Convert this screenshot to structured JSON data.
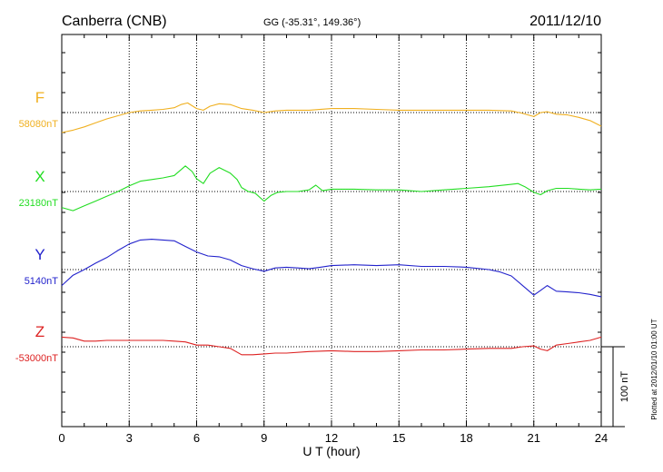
{
  "header": {
    "station": "Canberra (CNB)",
    "coords": "GG (-35.31°, 149.36°)",
    "date": "2011/12/10"
  },
  "footer": {
    "plotted": "Plotted at 2012/01/10 01:00 UT"
  },
  "scale_bar": {
    "label": "100 nT",
    "value": 100
  },
  "chart_data": {
    "type": "line",
    "xlabel": "U T (hour)",
    "ylabel": "",
    "xlim": [
      0,
      24
    ],
    "xticks": [
      0,
      3,
      6,
      9,
      12,
      15,
      18,
      21,
      24
    ],
    "grid": true,
    "series": [
      {
        "name": "F",
        "baseline_label": "58080nT",
        "baseline": 58080,
        "color": "#f0b020",
        "x": [
          0,
          0.5,
          1,
          1.5,
          2,
          2.5,
          3,
          3.5,
          4,
          4.5,
          5,
          5.3,
          5.6,
          6,
          6.3,
          6.6,
          7,
          7.5,
          8,
          8.5,
          9,
          9.5,
          10,
          11,
          12,
          13,
          14,
          15,
          16,
          17,
          18,
          19,
          20,
          20.5,
          21,
          21.3,
          21.6,
          22,
          22.5,
          23,
          23.5,
          24
        ],
        "y": [
          58055,
          58058,
          58062,
          58067,
          58072,
          58076,
          58080,
          58082,
          58083,
          58084,
          58086,
          58090,
          58092,
          58085,
          58083,
          58088,
          58091,
          58090,
          58085,
          58083,
          58080,
          58082,
          58083,
          58083,
          58085,
          58085,
          58084,
          58083,
          58083,
          58083,
          58083,
          58083,
          58082,
          58079,
          58075,
          58080,
          58081,
          58078,
          58077,
          58074,
          58070,
          58063
        ]
      },
      {
        "name": "X",
        "baseline_label": "23180nT",
        "baseline": 23180,
        "color": "#22dd22",
        "x": [
          0,
          0.5,
          1,
          1.5,
          2,
          2.5,
          3,
          3.5,
          4,
          4.5,
          5,
          5.5,
          5.8,
          6,
          6.3,
          6.6,
          7,
          7.5,
          7.8,
          8,
          8.3,
          8.6,
          9,
          9.3,
          9.6,
          10,
          10.5,
          11,
          11.3,
          11.6,
          12,
          13,
          14,
          15,
          16,
          17,
          18,
          19,
          20,
          20.3,
          20.6,
          21,
          21.3,
          21.6,
          22,
          22.5,
          23,
          23.5,
          24
        ],
        "y": [
          23160,
          23156,
          23162,
          23168,
          23174,
          23180,
          23187,
          23193,
          23195,
          23197,
          23200,
          23212,
          23205,
          23196,
          23190,
          23203,
          23210,
          23203,
          23195,
          23185,
          23180,
          23178,
          23168,
          23175,
          23179,
          23180,
          23180,
          23182,
          23188,
          23181,
          23183,
          23183,
          23182,
          23182,
          23180,
          23182,
          23184,
          23186,
          23189,
          23190,
          23186,
          23179,
          23176,
          23181,
          23184,
          23184,
          23183,
          23182,
          23183
        ]
      },
      {
        "name": "Y",
        "baseline_label": "5140nT",
        "baseline": 5140,
        "color": "#2222cc",
        "x": [
          0,
          0.5,
          1,
          1.5,
          2,
          2.5,
          3,
          3.5,
          4,
          4.5,
          5,
          5.5,
          6,
          6.5,
          7,
          7.5,
          8,
          8.5,
          9,
          9.5,
          10,
          10.5,
          11,
          11.5,
          12,
          13,
          14,
          15,
          16,
          17,
          18,
          19,
          19.5,
          20,
          20.5,
          21,
          21.3,
          21.6,
          22,
          22.5,
          23,
          23.5,
          24
        ],
        "y": [
          5120,
          5133,
          5140,
          5148,
          5155,
          5164,
          5172,
          5177,
          5178,
          5177,
          5176,
          5169,
          5162,
          5157,
          5156,
          5152,
          5145,
          5141,
          5138,
          5142,
          5143,
          5142,
          5141,
          5143,
          5145,
          5146,
          5145,
          5146,
          5144,
          5144,
          5143,
          5140,
          5137,
          5132,
          5120,
          5108,
          5114,
          5120,
          5113,
          5112,
          5111,
          5109,
          5106
        ]
      },
      {
        "name": "Z",
        "baseline_label": "-53000nT",
        "baseline": -53000,
        "color": "#dd2222",
        "x": [
          0,
          0.5,
          1,
          1.5,
          2,
          2.5,
          3,
          3.5,
          4,
          4.5,
          5,
          5.5,
          6,
          6.5,
          7,
          7.5,
          8,
          8.5,
          9,
          9.5,
          10,
          11,
          12,
          13,
          14,
          15,
          16,
          17,
          18,
          19,
          20,
          20.5,
          21,
          21.3,
          21.6,
          22,
          22.5,
          23,
          23.5,
          24
        ],
        "y": [
          -52988,
          -52989,
          -52993,
          -52993,
          -52992,
          -52992,
          -52992,
          -52992,
          -52992,
          -52992,
          -52993,
          -52994,
          -52998,
          -52998,
          -53000,
          -53002,
          -53010,
          -53010,
          -53009,
          -53008,
          -53008,
          -53006,
          -53005,
          -53006,
          -53006,
          -53005,
          -53004,
          -53004,
          -53003,
          -53002,
          -53002,
          -53000,
          -52999,
          -53003,
          -53005,
          -52998,
          -52996,
          -52994,
          -52992,
          -52988
        ]
      }
    ]
  }
}
